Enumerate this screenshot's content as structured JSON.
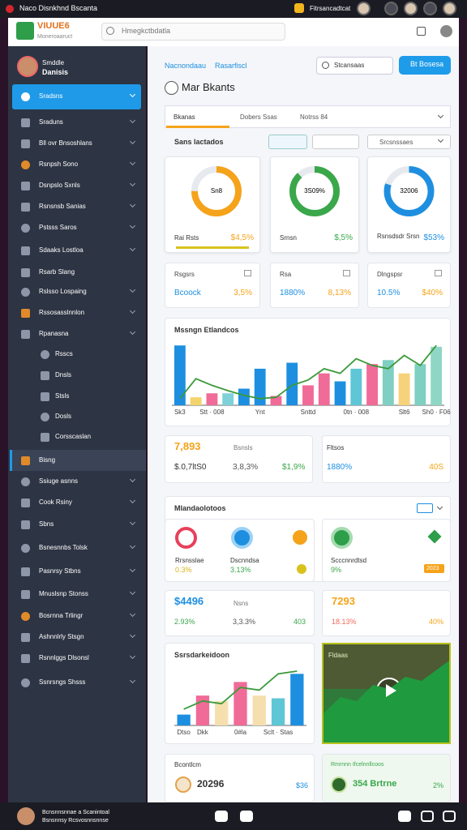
{
  "browser": {
    "tab_title": "Naco Disnkhnd Bscanta",
    "account": "Fitrsancadtcat"
  },
  "header": {
    "logo": "VIUUE6",
    "logo_sub": "Moneroaaruct",
    "search": "Hmegkctbdatla"
  },
  "sidebar": {
    "user": [
      "Smddle",
      "Danisis"
    ],
    "items": [
      "Sradsns",
      "Sraduns",
      "Bll ovr Bnsoshlans",
      "Rsnpsh Sono",
      "Dsnpslo Sxnls",
      "Rsnsnsb Sanias",
      "Pstsss Saros",
      "Sdaaks Lostloa",
      "Rsarb Slang",
      "Rslsso Lospaing",
      "Rssosasslnnlon",
      "Rpanasna",
      "Rsscs",
      "Dnsls",
      "Stsls",
      "Dosls",
      "Corsscaslan",
      "Bisng",
      "Ssiuge asnns",
      "Cook Rsiny",
      "Sbns",
      "Bsnesnnbs Tolsk",
      "Pasnrsy Stbns",
      "Mnuslsnp Stonss",
      "Bosrnna Trlingr",
      "Ashnnlrly Stsgn",
      "Rsnnlggs Dlsonsl",
      "Ssnrsngs Shsss"
    ]
  },
  "main": {
    "breadcrumb": [
      "Nacnondaau",
      "Rasarfiscl"
    ],
    "search_button": "Stcansaas",
    "primary_button": "Bt Bosesa",
    "title": "Mar Bkants",
    "tabs": [
      "Bkanas",
      "Dobers  Ssas",
      "Notrss  84"
    ],
    "section": "Sans lactados",
    "filter": "Srcsnssaes",
    "donuts": [
      {
        "center": "Sn8",
        "label": "Rai Rsts",
        "amount": "$4,5%",
        "progress": 75,
        "color": "#f5a31a"
      },
      {
        "center": "3S09%",
        "label": "Srnsn",
        "amount": "$,5%",
        "progress": 88,
        "color": "#3aa74a"
      },
      {
        "center": "32006",
        "label": "Rsnsdsdr Srsn",
        "amount": "$53%",
        "progress": 80,
        "color": "#1e8fe0"
      }
    ],
    "stats": [
      {
        "label": "Rsgsrs",
        "a": "Bcoock",
        "b": "3,5%"
      },
      {
        "label": "Rsa",
        "a": "1880%",
        "b": "8,13%"
      },
      {
        "label": "Dlngspsr",
        "a": "10.5%",
        "b": "$40%"
      }
    ],
    "main_chart": {
      "type": "bar",
      "title": "Mssngn Etlandcos",
      "categories": [
        "Sk3",
        null,
        "Stt · 008",
        null,
        null,
        "Ynt",
        null,
        null,
        "Snttd",
        null,
        null,
        "0tn · 008",
        null,
        null,
        "Slt6",
        null,
        "Sh0 · F06"
      ],
      "values": [
        90,
        12,
        18,
        18,
        25,
        55,
        14,
        64,
        30,
        48,
        36,
        55,
        62,
        68,
        48,
        62,
        88
      ],
      "colors": [
        "#1e8fe0",
        "#f3d36b",
        "#f06b97",
        "#7fd0d8",
        "#1e8fe0",
        "#1e8fe0",
        "#f06b97",
        "#1e8fe0",
        "#f06b97",
        "#f06b97",
        "#1e8fe0",
        "#5fc6d6",
        "#f06b97",
        "#7fcfc2",
        "#f6d27a",
        "#7fcfc2",
        "#8fd6c6"
      ],
      "line_values": [
        10,
        40,
        30,
        22,
        15,
        10,
        12,
        30,
        38,
        55,
        48,
        70,
        60,
        55,
        75,
        60,
        90
      ],
      "line_color": "#3a9a3a",
      "ylim": [
        0,
        100
      ]
    },
    "summary": [
      {
        "big": "7,893",
        "label": "Bsnsls",
        "a": "$.0,7ltS0",
        "b": "3,8,3%",
        "c": "$1,9%"
      },
      {
        "label": "Fltsos",
        "a": "1880%",
        "b": "40S"
      }
    ],
    "tiles": {
      "title": "Mlandaolotoos",
      "labels": [
        "Rrsnsslae",
        "Dscnndsa",
        "Scccnnrdtsd"
      ],
      "values": [
        "0.3%",
        "3.13%",
        "9%",
        "2023"
      ]
    },
    "cards": [
      {
        "big": "$4496",
        "label": "Nsns",
        "a": "2.93%",
        "b": "3,3.3%",
        "c": "403"
      },
      {
        "big": "7293",
        "a": "18.13%",
        "b": "40%"
      }
    ],
    "small_chart": {
      "type": "bar",
      "title": "Ssrsdarkeidoon",
      "categories": [
        "Dtso",
        "Dkk",
        null,
        "0#la",
        null,
        "Sclt · Stas",
        null
      ],
      "values": [
        20,
        55,
        45,
        80,
        55,
        50,
        95
      ],
      "colors": [
        "#1e8fe0",
        "#f06b97",
        "#f6dfae",
        "#f06b97",
        "#f6dfae",
        "#5fc6d6",
        "#1e8fe0"
      ],
      "line_values": [
        30,
        45,
        40,
        70,
        65,
        95,
        100
      ],
      "line_color": "#3a9a3a",
      "ylim": [
        0,
        100
      ]
    },
    "video": {
      "title": "Fldaas"
    },
    "footer_cards": [
      {
        "label": "Bcontlcm",
        "big": "20296",
        "c": "$36"
      },
      {
        "label": "Rmrnnn Ifcelnnllcoos",
        "big": "354 Brtrne",
        "c": "2%"
      }
    ]
  },
  "bottom_bar": {
    "lines": [
      "Bcnsnnsnnae a Scanintoal",
      "Bsnsnnsy Rcsvosnnsnnse"
    ]
  }
}
